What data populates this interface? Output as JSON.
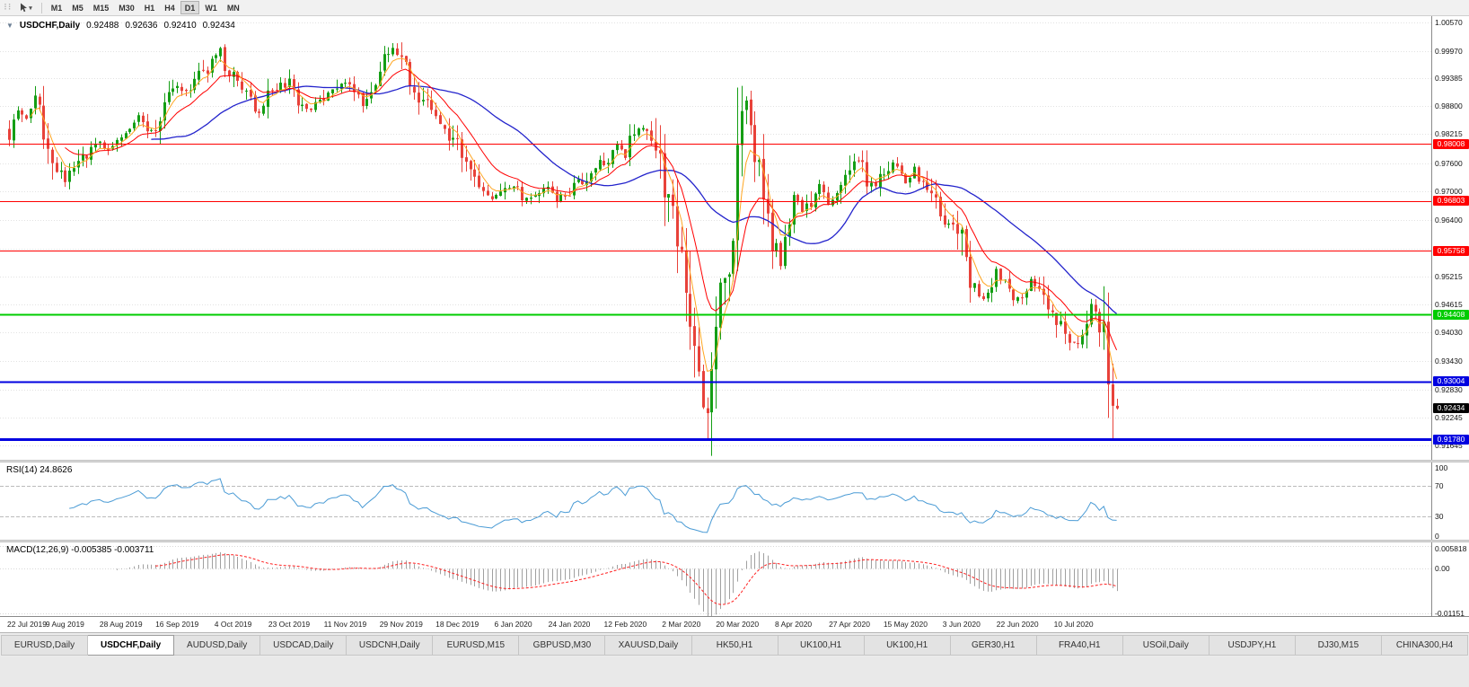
{
  "toolbar": {
    "timeframes": [
      "M1",
      "M5",
      "M15",
      "M30",
      "H1",
      "H4",
      "D1",
      "W1",
      "MN"
    ],
    "active_timeframe": "D1"
  },
  "icons": {
    "collapse_arrow": "▼",
    "dropdown_caret": "▾",
    "grip": "⠇⠇"
  },
  "chart": {
    "title": {
      "symbol_period": "USDCHF,Daily",
      "open": "0.92488",
      "high": "0.92636",
      "low": "0.92410",
      "close": "0.92434"
    },
    "price_axis_ticks": [
      "1.00570",
      "0.99970",
      "0.99385",
      "0.98800",
      "0.98215",
      "0.97600",
      "0.97000",
      "0.96400",
      "0.95800",
      "0.95215",
      "0.94615",
      "0.94030",
      "0.93430",
      "0.92830",
      "0.92245",
      "0.91645"
    ],
    "hlines": [
      {
        "price": 0.98008,
        "label": "0.98008",
        "color": "#FF0000",
        "width": 1
      },
      {
        "price": 0.96803,
        "label": "0.96803",
        "color": "#FF0000",
        "width": 1
      },
      {
        "price": 0.95758,
        "label": "0.95758",
        "color": "#FF0000",
        "width": 1
      },
      {
        "price": 0.94408,
        "label": "0.94408",
        "color": "#00CC00",
        "width": 2
      },
      {
        "price": 0.93004,
        "label": "0.93004",
        "color": "#0000E0",
        "width": 2
      },
      {
        "price": 0.9178,
        "label": "0.91780",
        "color": "#0000E0",
        "width": 3
      }
    ],
    "current_price": {
      "label": "0.92434",
      "price": 0.92434,
      "bg": "#000000"
    },
    "date_labels": [
      "22 Jul 2019",
      "9 Aug 2019",
      "28 Aug 2019",
      "16 Sep 2019",
      "4 Oct 2019",
      "23 Oct 2019",
      "11 Nov 2019",
      "29 Nov 2019",
      "18 Dec 2019",
      "6 Jan 2020",
      "24 Jan 2020",
      "12 Feb 2020",
      "2 Mar 2020",
      "20 Mar 2020",
      "8 Apr 2020",
      "27 Apr 2020",
      "15 May 2020",
      "3 Jun 2020",
      "22 Jun 2020",
      "10 Jul 2020"
    ],
    "date_tick_step": 13
  },
  "indicators": {
    "rsi": {
      "label": "RSI(14) 24.8626",
      "period": 14,
      "value": 24.8626,
      "levels": [
        70,
        30
      ],
      "axis_ticks": [
        "100",
        "70",
        "30",
        "0"
      ],
      "color": "#4A9BD5"
    },
    "macd": {
      "label": "MACD(12,26,9) -0.005385 -0.003711",
      "fast": 12,
      "slow": 26,
      "signal": 9,
      "macd_value": -0.005385,
      "signal_value": -0.003711,
      "axis_ticks": [
        "0.005818",
        "0.00",
        "-0.01151"
      ]
    }
  },
  "chart_data": {
    "type": "candlestick",
    "symbol": "USDCHF",
    "timeframe": "Daily",
    "candle_count": 258,
    "price_scale": {
      "max": 1.007,
      "min": 0.9135
    },
    "rsi_scale": {
      "max": 100,
      "min": 0
    },
    "macd_scale": {
      "max": 0.0068,
      "min": -0.0122
    },
    "last_ohlc": {
      "open": 0.92488,
      "high": 0.92636,
      "low": 0.9241,
      "close": 0.92434
    },
    "crash": {
      "index": 162,
      "low": 0.9178
    },
    "spike": {
      "index": 171,
      "high": 0.9901
    },
    "close_anchors": [
      [
        0,
        0.983
      ],
      [
        2,
        0.988
      ],
      [
        4,
        0.9855
      ],
      [
        6,
        0.99
      ],
      [
        8,
        0.982
      ],
      [
        10,
        0.977
      ],
      [
        13,
        0.9718
      ],
      [
        15,
        0.9745
      ],
      [
        17,
        0.977
      ],
      [
        19,
        0.9785
      ],
      [
        21,
        0.98
      ],
      [
        23,
        0.978
      ],
      [
        26,
        0.9815
      ],
      [
        28,
        0.984
      ],
      [
        30,
        0.9855
      ],
      [
        32,
        0.984
      ],
      [
        34,
        0.9825
      ],
      [
        36,
        0.988
      ],
      [
        39,
        0.993
      ],
      [
        41,
        0.9905
      ],
      [
        44,
        0.9945
      ],
      [
        47,
        0.997
      ],
      [
        49,
        0.999
      ],
      [
        51,
        0.995
      ],
      [
        53,
        0.993
      ],
      [
        56,
        0.989
      ],
      [
        58,
        0.987
      ],
      [
        60,
        0.9905
      ],
      [
        63,
        0.993
      ],
      [
        65,
        0.9925
      ],
      [
        67,
        0.989
      ],
      [
        70,
        0.987
      ],
      [
        73,
        0.9895
      ],
      [
        76,
        0.9915
      ],
      [
        78,
        0.9935
      ],
      [
        80,
        0.9905
      ],
      [
        82,
        0.989
      ],
      [
        84,
        0.9925
      ],
      [
        86,
        0.996
      ],
      [
        88,
        0.9985
      ],
      [
        89,
        1.0
      ],
      [
        91,
        0.9995
      ],
      [
        93,
        0.994
      ],
      [
        95,
        0.99
      ],
      [
        97,
        0.988
      ],
      [
        99,
        0.9855
      ],
      [
        101,
        0.983
      ],
      [
        104,
        0.979
      ],
      [
        106,
        0.9755
      ],
      [
        108,
        0.972
      ],
      [
        110,
        0.97
      ],
      [
        112,
        0.9685
      ],
      [
        114,
        0.97
      ],
      [
        117,
        0.9715
      ],
      [
        119,
        0.969
      ],
      [
        121,
        0.968
      ],
      [
        123,
        0.97
      ],
      [
        125,
        0.971
      ],
      [
        127,
        0.969
      ],
      [
        130,
        0.9695
      ],
      [
        132,
        0.9715
      ],
      [
        134,
        0.973
      ],
      [
        136,
        0.9745
      ],
      [
        138,
        0.976
      ],
      [
        140,
        0.978
      ],
      [
        141,
        0.979
      ],
      [
        143,
        0.978
      ],
      [
        145,
        0.982
      ],
      [
        146,
        0.984
      ],
      [
        148,
        0.983
      ],
      [
        149,
        0.982
      ],
      [
        151,
        0.976
      ],
      [
        152,
        0.97
      ],
      [
        154,
        0.964
      ],
      [
        156,
        0.957
      ],
      [
        157,
        0.952
      ],
      [
        158,
        0.945
      ],
      [
        159,
        0.939
      ],
      [
        160,
        0.933
      ],
      [
        161,
        0.926
      ],
      [
        162,
        0.9215
      ],
      [
        163,
        0.93
      ],
      [
        164,
        0.942
      ],
      [
        165,
        0.95
      ],
      [
        166,
        0.956
      ],
      [
        167,
        0.948
      ],
      [
        168,
        0.962
      ],
      [
        169,
        0.97
      ],
      [
        170,
        0.982
      ],
      [
        171,
        0.989
      ],
      [
        172,
        0.985
      ],
      [
        173,
        0.977
      ],
      [
        175,
        0.968
      ],
      [
        177,
        0.96
      ],
      [
        179,
        0.956
      ],
      [
        181,
        0.965
      ],
      [
        182,
        0.969
      ],
      [
        184,
        0.9655
      ],
      [
        186,
        0.9685
      ],
      [
        188,
        0.972
      ],
      [
        190,
        0.9665
      ],
      [
        192,
        0.969
      ],
      [
        195,
        0.974
      ],
      [
        197,
        0.9775
      ],
      [
        199,
        0.973
      ],
      [
        201,
        0.9705
      ],
      [
        203,
        0.9745
      ],
      [
        206,
        0.976
      ],
      [
        208,
        0.972
      ],
      [
        210,
        0.9745
      ],
      [
        212,
        0.9715
      ],
      [
        214,
        0.97
      ],
      [
        216,
        0.9655
      ],
      [
        218,
        0.963
      ],
      [
        221,
        0.96
      ],
      [
        223,
        0.951
      ],
      [
        226,
        0.948
      ],
      [
        229,
        0.953
      ],
      [
        232,
        0.95
      ],
      [
        234,
        0.947
      ],
      [
        237,
        0.9515
      ],
      [
        240,
        0.948
      ],
      [
        243,
        0.943
      ],
      [
        246,
        0.9395
      ],
      [
        248,
        0.938
      ],
      [
        251,
        0.9455
      ],
      [
        253,
        0.943
      ],
      [
        254,
        0.9395
      ],
      [
        255,
        0.933
      ],
      [
        256,
        0.925
      ],
      [
        257,
        0.92434
      ]
    ],
    "moving_averages": [
      {
        "name": "fast",
        "method": "ema",
        "period": 5,
        "color": "#FFA520",
        "width": 1
      },
      {
        "name": "medium",
        "method": "ema",
        "period": 13,
        "color": "#FF0000",
        "width": 1
      },
      {
        "name": "slow",
        "method": "sma",
        "period": 34,
        "color": "#2323CC",
        "width": 1.3
      }
    ]
  },
  "colors": {
    "bull": "#149E14",
    "bear": "#E8423A",
    "grid": "#E2E2E2",
    "rsi_level": "#BBBBBB",
    "macd_hist": "#A0A0A0",
    "macd_signal": "#FF2020",
    "axis_text": "#111111"
  },
  "tabs": {
    "items": [
      {
        "label": "EURUSD,Daily",
        "active": false
      },
      {
        "label": "USDCHF,Daily",
        "active": true
      },
      {
        "label": "AUDUSD,Daily",
        "active": false
      },
      {
        "label": "USDCAD,Daily",
        "active": false
      },
      {
        "label": "USDCNH,Daily",
        "active": false
      },
      {
        "label": "EURUSD,M15",
        "active": false
      },
      {
        "label": "GBPUSD,M30",
        "active": false
      },
      {
        "label": "XAUUSD,Daily",
        "active": false
      },
      {
        "label": "HK50,H1",
        "active": false
      },
      {
        "label": "UK100,H1",
        "active": false
      },
      {
        "label": "UK100,H1",
        "active": false
      },
      {
        "label": "GER30,H1",
        "active": false
      },
      {
        "label": "FRA40,H1",
        "active": false
      },
      {
        "label": "USOil,Daily",
        "active": false
      },
      {
        "label": "USDJPY,H1",
        "active": false
      },
      {
        "label": "DJ30,M15",
        "active": false
      },
      {
        "label": "CHINA300,H4",
        "active": false
      }
    ]
  }
}
